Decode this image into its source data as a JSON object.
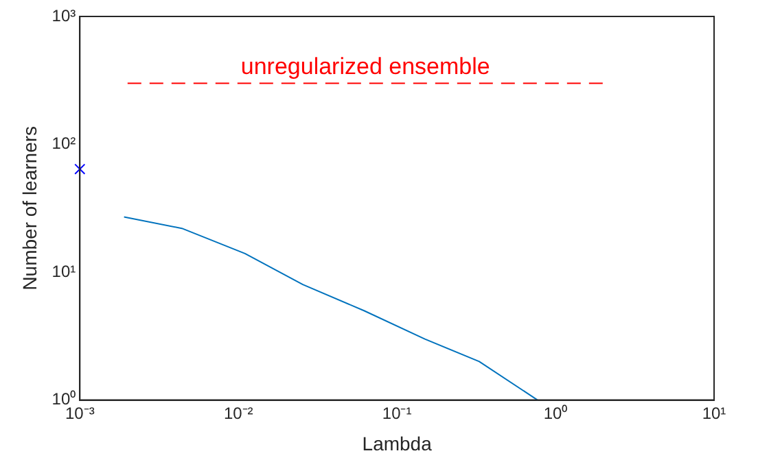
{
  "chart_data": {
    "type": "line",
    "xlabel": "Lambda",
    "ylabel": "Number of learners",
    "log": "xy",
    "grid": false,
    "legend": false,
    "xlim": [
      0.001,
      10
    ],
    "xticks": [
      {
        "value": 0.001,
        "label": "10⁻³"
      },
      {
        "value": 0.01,
        "label": "10⁻²"
      },
      {
        "value": 0.1,
        "label": "10⁻¹"
      },
      {
        "value": 1,
        "label": "10⁰"
      },
      {
        "value": 10,
        "label": "10¹"
      }
    ],
    "ylim": [
      1,
      1000
    ],
    "yticks": [
      {
        "value": 1,
        "label": "10⁰"
      },
      {
        "value": 10,
        "label": "10¹"
      },
      {
        "value": 100,
        "label": "10²"
      },
      {
        "value": 1000,
        "label": "10³"
      }
    ],
    "series": [
      {
        "color": "#0072bd",
        "marker": "none",
        "line_style": "solid",
        "x": [
          0.0019,
          0.0044,
          0.011,
          0.0255,
          0.062,
          0.15,
          0.33,
          0.77
        ],
        "values": [
          27,
          22,
          14,
          8,
          5,
          3,
          2,
          1
        ]
      },
      {
        "type": "scatter",
        "color": "#0000ff",
        "marker": "cross",
        "x": [
          0.001
        ],
        "values": [
          64
        ]
      },
      {
        "type": "line",
        "name": "unregularized ensemble",
        "color": "#ff0000",
        "marker": "none",
        "line_style": "dashed",
        "x": [
          0.002,
          2
        ],
        "values": [
          300,
          300
        ]
      }
    ]
  }
}
